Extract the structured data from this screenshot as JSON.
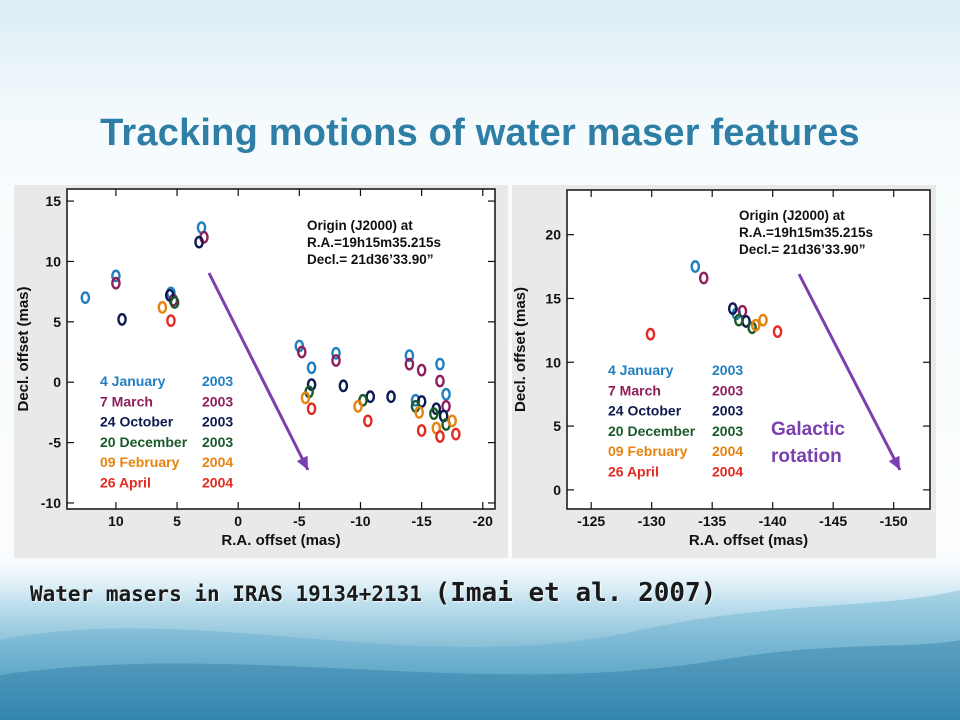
{
  "slide": {
    "title": "Tracking motions of water maser features",
    "caption_main": "Water masers in IRAS 19134+2131 ",
    "caption_ref": "(Imai et al. 2007)",
    "overlay_label_line1": "Galactic",
    "overlay_label_line2": "rotation"
  },
  "colors": {
    "title": "#2e7ea6",
    "arrow": "#7b3fb0",
    "epoch_colors": [
      "#1f7fc0",
      "#8e1f5c",
      "#0d1a4f",
      "#1a5a2a",
      "#e6830f",
      "#e22b22"
    ]
  },
  "chart_data": [
    {
      "type": "scatter",
      "panel": "left",
      "xlabel": "R.A. offset (mas)",
      "ylabel": "Decl. offset (mas)",
      "xlim": [
        14,
        -21
      ],
      "ylim": [
        -10.5,
        16
      ],
      "x_reversed": true,
      "xticks": [
        10,
        5,
        0,
        -5,
        -10,
        -15,
        -20
      ],
      "yticks": [
        15,
        10,
        5,
        0,
        -5,
        -10
      ],
      "grid": false,
      "annotation": [
        "Origin (J2000) at",
        "R.A.=19h15m35.215s",
        "Decl.= 21d36’33.90”"
      ],
      "legend": [
        {
          "label": "4 January",
          "year": "2003"
        },
        {
          "label": "7 March",
          "year": "2003"
        },
        {
          "label": "24 October",
          "year": "2003"
        },
        {
          "label": "20 December",
          "year": "2003"
        },
        {
          "label": "09 February",
          "year": "2004"
        },
        {
          "label": "26 April",
          "year": "2004"
        }
      ],
      "series": [
        {
          "name": "4 January 2003",
          "points": [
            [
              12.5,
              7
            ],
            [
              10,
              8.8
            ],
            [
              5.5,
              7.4
            ],
            [
              3,
              12.8
            ],
            [
              -5,
              3
            ],
            [
              -6,
              1.2
            ],
            [
              -8,
              2.4
            ],
            [
              -14,
              2.2
            ],
            [
              -16.5,
              1.5
            ],
            [
              -17,
              -1
            ],
            [
              -14.5,
              -1.5
            ]
          ]
        },
        {
          "name": "7 March 2003",
          "points": [
            [
              10,
              8.2
            ],
            [
              5.3,
              6.8
            ],
            [
              2.8,
              12
            ],
            [
              -5.2,
              2.5
            ],
            [
              -8,
              1.8
            ],
            [
              -14,
              1.5
            ],
            [
              -15,
              1
            ],
            [
              -16.5,
              0.1
            ],
            [
              -17,
              -2
            ]
          ]
        },
        {
          "name": "24 October 2003",
          "points": [
            [
              9.5,
              5.2
            ],
            [
              5.6,
              7.2
            ],
            [
              3.2,
              11.6
            ],
            [
              -6,
              -0.2
            ],
            [
              -8.6,
              -0.3
            ],
            [
              -10.8,
              -1.2
            ],
            [
              -12.5,
              -1.2
            ],
            [
              -15,
              -1.6
            ],
            [
              -16.2,
              -2.2
            ],
            [
              -16.8,
              -2.8
            ]
          ]
        },
        {
          "name": "20 December 2003",
          "points": [
            [
              5.2,
              6.6
            ],
            [
              -5.8,
              -0.8
            ],
            [
              -10.2,
              -1.5
            ],
            [
              -14.5,
              -2
            ],
            [
              -16,
              -2.6
            ],
            [
              -17,
              -3.5
            ]
          ]
        },
        {
          "name": "09 February 2004",
          "points": [
            [
              6.2,
              6.2
            ],
            [
              -5.5,
              -1.3
            ],
            [
              -9.8,
              -2
            ],
            [
              -14.8,
              -2.5
            ],
            [
              -16.2,
              -3.8
            ],
            [
              -17.5,
              -3.2
            ]
          ]
        },
        {
          "name": "26 April 2004",
          "points": [
            [
              5.5,
              5.1
            ],
            [
              -6,
              -2.2
            ],
            [
              -10.6,
              -3.2
            ],
            [
              -15,
              -4
            ],
            [
              -16.5,
              -4.5
            ],
            [
              -17.8,
              -4.3
            ]
          ]
        }
      ]
    },
    {
      "type": "scatter",
      "panel": "right",
      "xlabel": "R.A. offset (mas)",
      "ylabel": "Decl. offset (mas)",
      "xlim": [
        -123,
        -153
      ],
      "ylim": [
        -1.5,
        23.5
      ],
      "x_reversed": true,
      "xticks": [
        -125,
        -130,
        -135,
        -140,
        -145,
        -150
      ],
      "yticks": [
        20,
        15,
        10,
        5,
        0
      ],
      "grid": false,
      "annotation": [
        "Origin (J2000) at",
        "R.A.=19h15m35.215s",
        "Decl.= 21d36’33.90”"
      ],
      "legend": [
        {
          "label": "4 January",
          "year": "2003"
        },
        {
          "label": "7 March",
          "year": "2003"
        },
        {
          "label": "24 October",
          "year": "2003"
        },
        {
          "label": "20 December",
          "year": "2003"
        },
        {
          "label": "09 February",
          "year": "2004"
        },
        {
          "label": "26 April",
          "year": "2004"
        }
      ],
      "series": [
        {
          "name": "4 January 2003",
          "points": [
            [
              -133.6,
              17.5
            ],
            [
              -137,
              13.8
            ]
          ]
        },
        {
          "name": "7 March 2003",
          "points": [
            [
              -134.3,
              16.6
            ],
            [
              -137.5,
              14
            ]
          ]
        },
        {
          "name": "24 October 2003",
          "points": [
            [
              -136.7,
              14.2
            ],
            [
              -137.8,
              13.2
            ]
          ]
        },
        {
          "name": "20 December 2003",
          "points": [
            [
              -137.2,
              13.3
            ],
            [
              -138.3,
              12.7
            ]
          ]
        },
        {
          "name": "09 February 2004",
          "points": [
            [
              -138.6,
              12.9
            ],
            [
              -139.2,
              13.3
            ]
          ]
        },
        {
          "name": "26 April 2004",
          "points": [
            [
              -129.9,
              12.2
            ],
            [
              -140.4,
              12.4
            ]
          ]
        }
      ]
    }
  ]
}
